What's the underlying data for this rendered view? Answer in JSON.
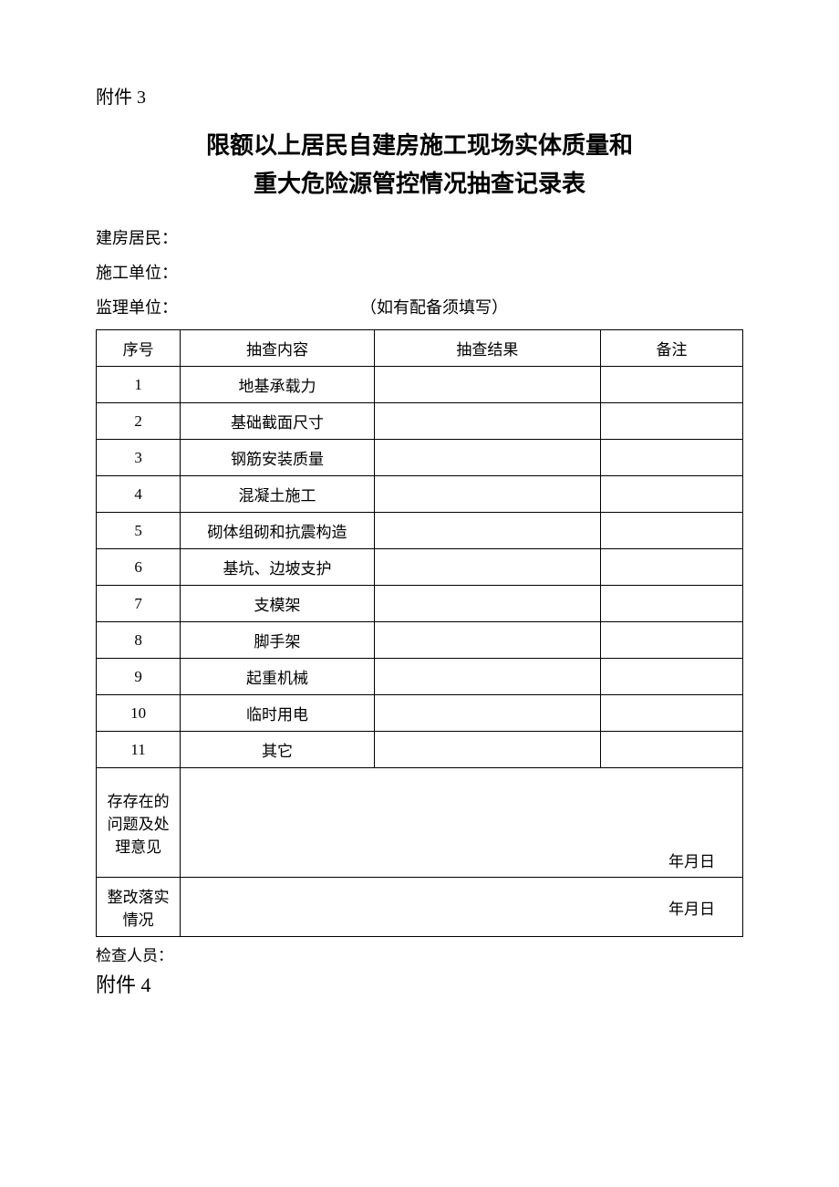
{
  "attachment3": "附件 3",
  "title_line1": "限额以上居民自建房施工现场实体质量和",
  "title_line2": "重大危险源管控情况抽查记录表",
  "info": {
    "resident_label": "建房居民：",
    "construction_label": "施工单位：",
    "supervision_label": "监理单位：",
    "supervision_note": "（如有配备须填写）"
  },
  "table": {
    "headers": {
      "seq": "序号",
      "content": "抽查内容",
      "result": "抽查结果",
      "remark": "备注"
    },
    "rows": [
      {
        "seq": "1",
        "content": "地基承载力",
        "result": "",
        "remark": ""
      },
      {
        "seq": "2",
        "content": "基础截面尺寸",
        "result": "",
        "remark": ""
      },
      {
        "seq": "3",
        "content": "钢筋安装质量",
        "result": "",
        "remark": ""
      },
      {
        "seq": "4",
        "content": "混凝土施工",
        "result": "",
        "remark": ""
      },
      {
        "seq": "5",
        "content": "砌体组砌和抗震构造",
        "result": "",
        "remark": ""
      },
      {
        "seq": "6",
        "content": "基坑、边坡支护",
        "result": "",
        "remark": ""
      },
      {
        "seq": "7",
        "content": "支模架",
        "result": "",
        "remark": ""
      },
      {
        "seq": "8",
        "content": "脚手架",
        "result": "",
        "remark": ""
      },
      {
        "seq": "9",
        "content": "起重机械",
        "result": "",
        "remark": ""
      },
      {
        "seq": "10",
        "content": "临时用电",
        "result": "",
        "remark": ""
      },
      {
        "seq": "11",
        "content": "其它",
        "result": "",
        "remark": ""
      }
    ],
    "issues_label": "存存在的问题及处理意见",
    "rectification_label": "整改落实情况",
    "date_text": "年月日"
  },
  "footer": {
    "inspector_label": "检查人员："
  },
  "attachment4": "附件 4"
}
